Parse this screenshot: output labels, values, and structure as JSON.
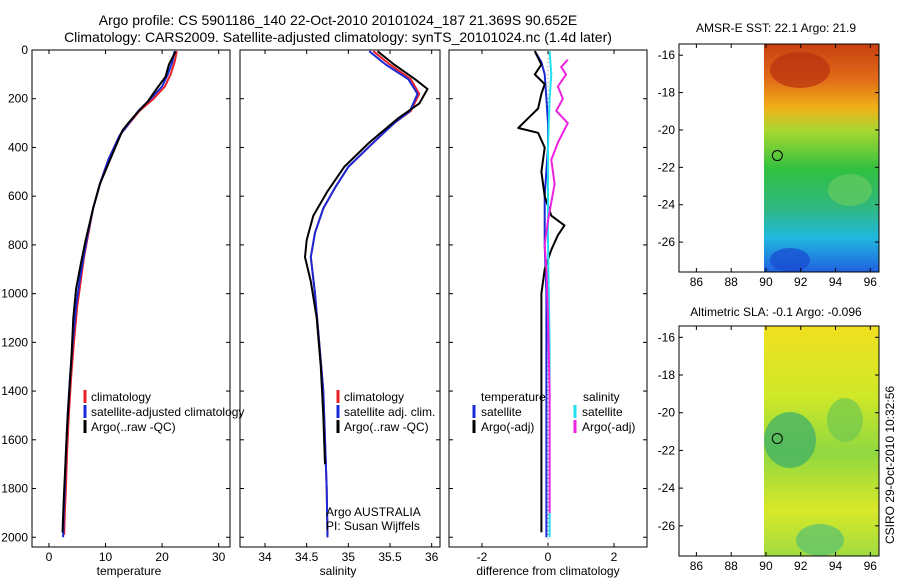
{
  "header": {
    "title_line1": "Argo profile: CS 5901186_140 22-Oct-2010 20101024_187 21.369S 90.652E",
    "title_line2": "Climatology: CARS2009. Satellite-adjusted climatology: synTS_20101024.nc (1.4d later)"
  },
  "side_label": "CSIRO 29-Oct-2010 10:32:56",
  "colors": {
    "red": "#e8202a",
    "blue": "#1a2bd6",
    "black": "#000000",
    "cyan": "#22e0f0",
    "magenta": "#f020e0",
    "grey": "#888888"
  },
  "chart_data": [
    {
      "type": "line",
      "id": "temperature",
      "xlabel": "temperature",
      "xlim": [
        -3,
        32
      ],
      "ylim": [
        2040,
        0
      ],
      "x_ticks": [
        0,
        10,
        20,
        30
      ],
      "x_tick_labels": [
        "0",
        "10",
        "20",
        "30"
      ],
      "y_ticks": [
        0,
        200,
        400,
        600,
        800,
        1000,
        1200,
        1400,
        1600,
        1800,
        2000
      ],
      "y_tick_labels": [
        "0",
        "200",
        "400",
        "600",
        "800",
        "1000",
        "1200",
        "1400",
        "1600",
        "1800",
        "2000"
      ],
      "legend": [
        "climatology",
        "satellite-adjusted climatology",
        "Argo(..raw -QC)"
      ],
      "series": [
        {
          "name": "climatology",
          "color": "red",
          "x": [
            22.6,
            22.2,
            21.5,
            20.5,
            18.5,
            16.0,
            12.5,
            10.5,
            9.0,
            7.8,
            7.0,
            6.2,
            5.6,
            5.0,
            4.4,
            3.9,
            3.5,
            3.2,
            3.0,
            2.8,
            2.7
          ],
          "y": [
            5,
            50,
            100,
            150,
            200,
            250,
            350,
            450,
            550,
            650,
            750,
            850,
            950,
            1050,
            1200,
            1350,
            1500,
            1650,
            1800,
            1900,
            1990
          ]
        },
        {
          "name": "satellite-adjusted climatology",
          "color": "blue",
          "x": [
            22.2,
            21.8,
            21.0,
            20.0,
            18.0,
            15.8,
            12.5,
            10.5,
            9.0,
            7.8,
            6.9,
            6.1,
            5.4,
            4.8,
            4.2,
            3.7,
            3.3,
            3.0,
            2.8,
            2.6,
            2.5
          ],
          "y": [
            5,
            50,
            100,
            150,
            200,
            250,
            350,
            450,
            550,
            650,
            750,
            850,
            950,
            1050,
            1200,
            1350,
            1500,
            1650,
            1800,
            1900,
            2000
          ]
        },
        {
          "name": "Argo(..raw -QC)",
          "color": "black",
          "x": [
            22.4,
            21.2,
            20.6,
            19.0,
            17.5,
            15.5,
            14.0,
            13.0,
            10.8,
            9.0,
            7.8,
            6.5,
            5.6,
            4.8,
            4.3,
            4.0,
            3.6,
            3.2,
            2.9,
            2.6,
            2.4
          ],
          "y": [
            5,
            60,
            110,
            160,
            210,
            260,
            300,
            330,
            450,
            550,
            650,
            780,
            880,
            980,
            1100,
            1250,
            1400,
            1550,
            1700,
            1850,
            1980
          ]
        }
      ]
    },
    {
      "type": "line",
      "id": "salinity",
      "xlabel": "salinity",
      "xlim": [
        33.7,
        36.1
      ],
      "ylim": [
        2040,
        0
      ],
      "x_ticks": [
        34,
        34.5,
        35,
        35.5,
        36
      ],
      "x_tick_labels": [
        "34",
        "34.5",
        "35",
        "35.5",
        "36"
      ],
      "legend": [
        "climatology",
        "satellite adj. clim.",
        "Argo(..raw -QC)"
      ],
      "annotation": [
        "Argo AUSTRALIA",
        "PI: Susan Wijffels"
      ],
      "series": [
        {
          "name": "climatology",
          "color": "red",
          "x": [
            35.3,
            35.5,
            35.75,
            35.85,
            35.75,
            35.55,
            35.3,
            35.0,
            34.85,
            34.7,
            34.6,
            34.55,
            34.6,
            34.65,
            34.7,
            34.72,
            34.74,
            34.75
          ],
          "y": [
            5,
            60,
            120,
            180,
            250,
            300,
            380,
            480,
            560,
            650,
            750,
            850,
            1000,
            1200,
            1400,
            1600,
            1800,
            2000
          ]
        },
        {
          "name": "satellite adj. clim.",
          "color": "blue",
          "x": [
            35.25,
            35.45,
            35.72,
            35.83,
            35.74,
            35.55,
            35.3,
            35.0,
            34.85,
            34.7,
            34.6,
            34.55,
            34.6,
            34.65,
            34.7,
            34.72,
            34.74,
            34.75
          ],
          "y": [
            5,
            60,
            120,
            180,
            250,
            300,
            380,
            480,
            560,
            650,
            750,
            850,
            1000,
            1200,
            1400,
            1600,
            1800,
            2000
          ]
        },
        {
          "name": "Argo(..raw -QC)",
          "color": "black",
          "x": [
            35.35,
            35.55,
            35.8,
            35.95,
            35.85,
            35.6,
            35.25,
            34.95,
            34.75,
            34.58,
            34.5,
            34.48,
            34.55,
            34.62,
            34.67,
            34.7,
            34.72
          ],
          "y": [
            5,
            60,
            120,
            160,
            220,
            280,
            380,
            480,
            580,
            680,
            780,
            850,
            950,
            1100,
            1300,
            1500,
            1700
          ]
        }
      ]
    },
    {
      "type": "line",
      "id": "difference",
      "xlabel": "difference from climatology",
      "xlim": [
        -3,
        3
      ],
      "ylim": [
        2040,
        0
      ],
      "x_ticks": [
        -2,
        0,
        2
      ],
      "x_tick_labels": [
        "-2",
        "0",
        "2"
      ],
      "legend_headers": [
        "temperature",
        "salinity"
      ],
      "legend": [
        "satellite",
        "Argo(-adj)",
        "satellite",
        "Argo(-adj)"
      ],
      "series": [
        {
          "name": "temperature satellite",
          "color": "blue",
          "x": [
            -0.4,
            -0.2,
            -0.1,
            -0.05,
            0,
            0,
            -0.1,
            -0.1,
            -0.05,
            -0.05,
            -0.05,
            -0.05
          ],
          "y": [
            5,
            50,
            100,
            200,
            300,
            400,
            600,
            800,
            1000,
            1400,
            1800,
            2000
          ]
        },
        {
          "name": "temperature Argo(-adj)",
          "color": "black",
          "x": [
            -0.4,
            -0.2,
            -0.4,
            -0.1,
            -0.2,
            -0.3,
            -0.6,
            -0.9,
            -0.3,
            -0.1,
            -0.2,
            -0.1,
            0.1,
            0.5,
            0.3,
            0.1,
            -0.1,
            -0.2,
            -0.2,
            -0.2,
            -0.2,
            -0.2
          ],
          "y": [
            5,
            60,
            100,
            140,
            180,
            240,
            280,
            320,
            340,
            400,
            500,
            600,
            680,
            720,
            760,
            820,
            900,
            1000,
            1200,
            1500,
            1800,
            1980
          ]
        },
        {
          "name": "salinity satellite",
          "color": "cyan",
          "x": [
            0.05,
            0.1,
            0.05,
            0.0,
            0.0,
            0.05,
            0.05,
            0.05,
            0.05
          ],
          "y": [
            5,
            100,
            200,
            400,
            800,
            1200,
            1600,
            1800,
            2000
          ]
        },
        {
          "name": "salinity Argo(-adj)",
          "color": "magenta",
          "x": [
            0.6,
            0.4,
            0.55,
            0.3,
            0.45,
            0.25,
            0.6,
            0.3,
            0.1,
            0.2,
            0.0,
            -0.1,
            -0.05,
            0.0,
            0.05,
            0.05,
            0.05
          ],
          "y": [
            40,
            70,
            100,
            150,
            200,
            250,
            300,
            380,
            450,
            550,
            700,
            800,
            900,
            1100,
            1400,
            1700,
            1900
          ]
        }
      ]
    },
    {
      "type": "heatmap",
      "id": "sst",
      "title": "AMSR-E SST: 22.1 Argo: 21.9",
      "xlim": [
        85,
        96.5
      ],
      "ylim": [
        -27.6,
        -15.4
      ],
      "x_ticks": [
        86,
        88,
        90,
        92,
        94,
        96
      ],
      "x_tick_labels": [
        "86",
        "88",
        "90",
        "92",
        "94",
        "96"
      ],
      "y_ticks": [
        -16,
        -18,
        -20,
        -22,
        -24,
        -26
      ],
      "y_tick_labels": [
        "-16",
        "-18",
        "-20",
        "-22",
        "-24",
        "-26"
      ],
      "data_xmin": 90,
      "marker": [
        90.652,
        -21.369
      ]
    },
    {
      "type": "heatmap",
      "id": "sla",
      "title": "Altimetric SLA: -0.1 Argo: -0.096",
      "xlim": [
        85,
        96.5
      ],
      "ylim": [
        -27.6,
        -15.4
      ],
      "x_ticks": [
        86,
        88,
        90,
        92,
        94,
        96
      ],
      "x_tick_labels": [
        "86",
        "88",
        "90",
        "92",
        "94",
        "96"
      ],
      "y_ticks": [
        -16,
        -18,
        -20,
        -22,
        -24,
        -26
      ],
      "y_tick_labels": [
        "-16",
        "-18",
        "-20",
        "-22",
        "-24",
        "-26"
      ],
      "data_xmin": 90,
      "marker": [
        90.652,
        -21.369
      ]
    }
  ]
}
